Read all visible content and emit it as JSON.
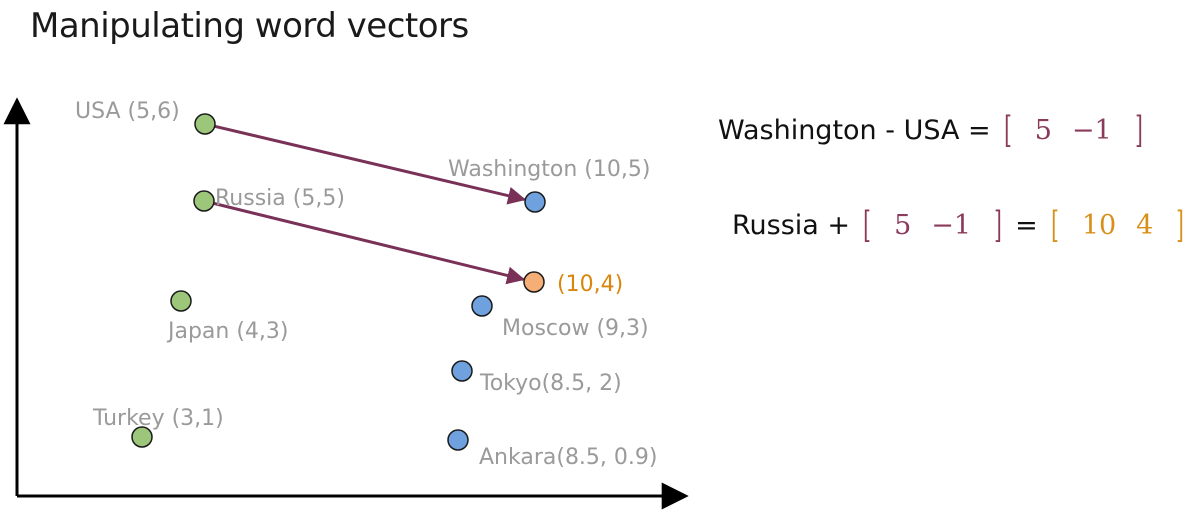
{
  "title": "Manipulating word vectors",
  "points": [
    {
      "id": "usa",
      "label": "USA (5,6)",
      "color": "#9cc77a",
      "group": "country"
    },
    {
      "id": "russia",
      "label": "Russia (5,5)",
      "color": "#9cc77a",
      "group": "country"
    },
    {
      "id": "japan",
      "label": "Japan (4,3)",
      "color": "#9cc77a",
      "group": "country"
    },
    {
      "id": "turkey",
      "label": "Turkey (3,1)",
      "color": "#9cc77a",
      "group": "country"
    },
    {
      "id": "washington",
      "label": "Washington  (10,5)",
      "color": "#6fa1de",
      "group": "capital"
    },
    {
      "id": "result",
      "label": "(10,4)",
      "color": "#f4ae76",
      "group": "result"
    },
    {
      "id": "moscow",
      "label": "Moscow (9,3)",
      "color": "#6fa1de",
      "group": "capital"
    },
    {
      "id": "tokyo",
      "label": "Tokyo(8.5, 2)",
      "color": "#6fa1de",
      "group": "capital"
    },
    {
      "id": "ankara",
      "label": "Ankara(8.5, 0.9)",
      "color": "#6fa1de",
      "group": "capital"
    }
  ],
  "arrows": [
    {
      "from": "usa",
      "to": "washington",
      "color": "#7a3158"
    },
    {
      "from": "russia",
      "to": "result",
      "color": "#7a3158"
    }
  ],
  "colors": {
    "axis": "#000000",
    "label": "#9a9a9a",
    "accent_label": "#d9860e",
    "vector_purple": "#8a3a5a",
    "vector_orange": "#d9901a"
  },
  "equations": {
    "eq1": {
      "left": "Washington - USA =",
      "vector": [
        "5",
        "−1"
      ]
    },
    "eq2": {
      "left": "Russia +",
      "vector": [
        "5",
        "−1"
      ],
      "equals": "=",
      "result": [
        "10",
        "4"
      ]
    }
  }
}
